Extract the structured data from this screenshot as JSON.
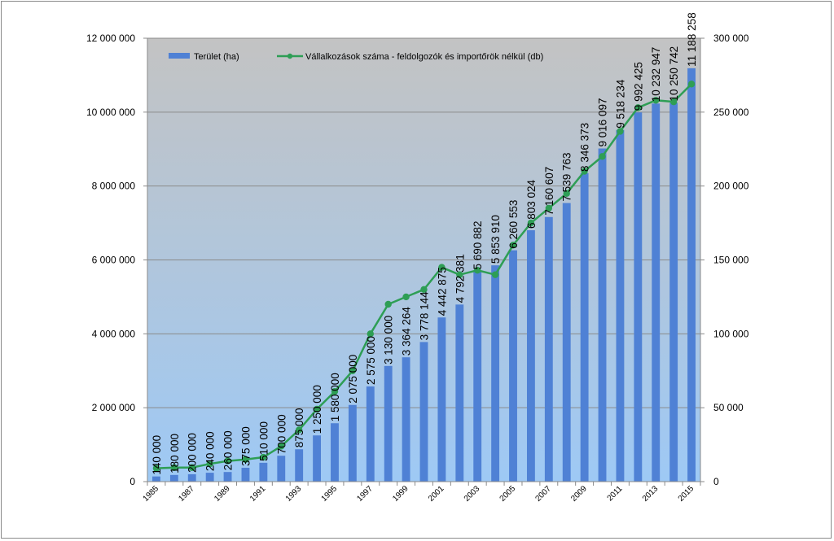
{
  "chart_data": {
    "type": "bar",
    "title": "",
    "x": [
      "1985",
      "1986",
      "1987",
      "1988",
      "1989",
      "1990",
      "1991",
      "1992",
      "1993",
      "1994",
      "1995",
      "1996",
      "1997",
      "1998",
      "1999",
      "2000",
      "2001",
      "2002",
      "2003",
      "2004",
      "2005",
      "2006",
      "2007",
      "2008",
      "2009",
      "2010",
      "2011",
      "2012",
      "2013",
      "2014",
      "2015"
    ],
    "x_tick_labels": [
      "1985",
      "1987",
      "1989",
      "1991",
      "1993",
      "1995",
      "1997",
      "1999",
      "2001",
      "2003",
      "2005",
      "2007",
      "2009",
      "2011",
      "2013",
      "2015"
    ],
    "series": [
      {
        "name": "Terület (ha)",
        "type": "bar",
        "axis": "left",
        "color": "#4f81d5",
        "values": [
          140000,
          180000,
          200000,
          240000,
          260000,
          375000,
          510000,
          700000,
          875000,
          1250000,
          1580000,
          2075000,
          2575000,
          3130000,
          3364264,
          3778144,
          4442875,
          4792381,
          5690882,
          5853910,
          6260553,
          6803024,
          7160607,
          7539763,
          8346373,
          9016097,
          9518234,
          9992425,
          10232947,
          10250742,
          11188258
        ],
        "value_labels": [
          "140 000",
          "180 000",
          "200 000",
          "240 000",
          "260 000",
          "375 000",
          "510 000",
          "700 000",
          "875 000",
          "1 250 000",
          "1 580 000",
          "2 075 000",
          "2 575 000",
          "3 130 000",
          "3 364 264",
          "3 778 144",
          "4 442 875",
          "4 792 381",
          "5 690 882",
          "5 853 910",
          "6 260 553",
          "6 803 024",
          "7 160 607",
          "7 539 763",
          "8 346 373",
          "9 016 097",
          "9 518 234",
          "9 992 425",
          "10 232 947",
          "10 250 742",
          "11 188 258"
        ]
      },
      {
        "name": "Vállalkozások száma - feldolgozók és importőrök nélkül (db)",
        "type": "line",
        "axis": "right",
        "color": "#2e9e55",
        "values": [
          9000,
          9500,
          9500,
          12000,
          14000,
          15000,
          16500,
          24000,
          35000,
          49000,
          61000,
          75000,
          100000,
          120000,
          125000,
          130000,
          145000,
          140000,
          143000,
          140000,
          160000,
          175000,
          185000,
          195000,
          210000,
          220000,
          237000,
          253000,
          258000,
          257000,
          269000
        ]
      }
    ],
    "y_left": {
      "range": [
        0,
        12000000
      ],
      "ticks": [
        0,
        2000000,
        4000000,
        6000000,
        8000000,
        10000000,
        12000000
      ],
      "tick_labels": [
        "0",
        "2 000 000",
        "4 000 000",
        "6 000 000",
        "8 000 000",
        "10 000 000",
        "12 000 000"
      ]
    },
    "y_right": {
      "range": [
        0,
        300000
      ],
      "ticks": [
        0,
        50000,
        100000,
        150000,
        200000,
        250000,
        300000
      ],
      "tick_labels": [
        "0",
        "50 000",
        "100 000",
        "150 000",
        "200 000",
        "250 000",
        "300 000"
      ]
    },
    "grid": true,
    "legend_position": "top-left inside",
    "plot_background": {
      "top": "#c3c3c3",
      "bottom": "#9ec9f5"
    }
  }
}
